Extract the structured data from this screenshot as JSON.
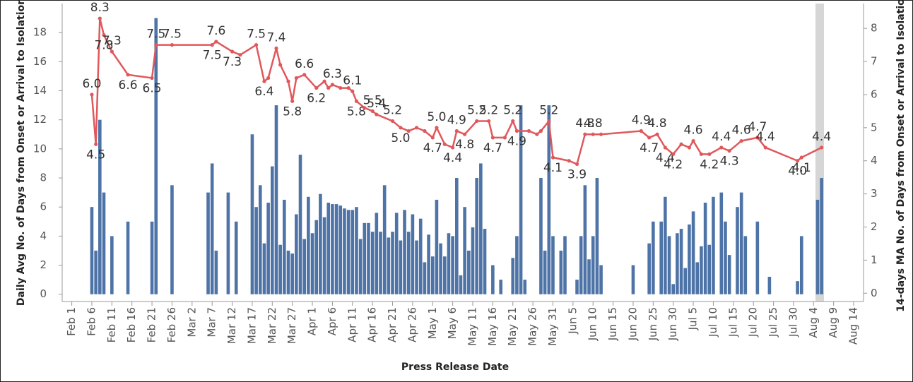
{
  "chart_data": {
    "type": "combo",
    "xlabel": "Press Release Date",
    "ylabel": "Daily Avg No. of Days from Onset or Arrival to Isolation",
    "y2label": "14-days MA No. of Days from Onset or Arrival to Isolation",
    "xticks": [
      "Feb 1",
      "Feb 6",
      "Feb 11",
      "Feb 16",
      "Feb 21",
      "Feb 26",
      "Mar 2",
      "Mar 7",
      "Mar 12",
      "Mar 17",
      "Mar 22",
      "Mar 27",
      "Apr 1",
      "Apr 6",
      "Apr 11",
      "Apr 16",
      "Apr 21",
      "Apr 26",
      "May 1",
      "May 6",
      "May 11",
      "May 16",
      "May 21",
      "May 26",
      "May 31",
      "Jun 5",
      "Jun 10",
      "Jun 15",
      "Jun 20",
      "Jun 25",
      "Jun 30",
      "Jul 5",
      "Jul 10",
      "Jul 15",
      "Jul 20",
      "Jul 25",
      "Jul 30",
      "Aug 4",
      "Aug 9",
      "Aug 14"
    ],
    "ylim": [
      -0.5,
      20
    ],
    "yticks": [
      0,
      2,
      4,
      6,
      8,
      10,
      12,
      14,
      16,
      18
    ],
    "y2lim": [
      -0.25,
      8.75
    ],
    "y2ticks": [
      0,
      1,
      2,
      3,
      4,
      5,
      6,
      7,
      8
    ],
    "series": [
      {
        "type": "bar",
        "color": "#4e73a6",
        "x": [
          "Feb 6",
          "Feb 7",
          "Feb 8",
          "Feb 9",
          "Feb 11",
          "Feb 15",
          "Feb 21",
          "Feb 22",
          "Feb 26",
          "Mar 6",
          "Mar 7",
          "Mar 8",
          "Mar 11",
          "Mar 13",
          "Mar 17",
          "Mar 18",
          "Mar 19",
          "Mar 20",
          "Mar 21",
          "Mar 22",
          "Mar 23",
          "Mar 24",
          "Mar 25",
          "Mar 26",
          "Mar 27",
          "Mar 28",
          "Mar 29",
          "Mar 30",
          "Mar 31",
          "Apr 1",
          "Apr 2",
          "Apr 3",
          "Apr 4",
          "Apr 5",
          "Apr 6",
          "Apr 7",
          "Apr 8",
          "Apr 9",
          "Apr 10",
          "Apr 11",
          "Apr 12",
          "Apr 13",
          "Apr 14",
          "Apr 15",
          "Apr 16",
          "Apr 17",
          "Apr 18",
          "Apr 19",
          "Apr 20",
          "Apr 21",
          "Apr 22",
          "Apr 23",
          "Apr 24",
          "Apr 25",
          "Apr 26",
          "Apr 27",
          "Apr 28",
          "Apr 29",
          "Apr 30",
          "May 1",
          "May 2",
          "May 3",
          "May 4",
          "May 5",
          "May 6",
          "May 7",
          "May 8",
          "May 9",
          "May 10",
          "May 11",
          "May 12",
          "May 13",
          "May 14",
          "May 16",
          "May 18",
          "May 21",
          "May 22",
          "May 23",
          "May 24",
          "May 28",
          "May 29",
          "May 30",
          "May 31",
          "Jun 2",
          "Jun 3",
          "Jun 6",
          "Jun 7",
          "Jun 8",
          "Jun 9",
          "Jun 10",
          "Jun 11",
          "Jun 12",
          "Jun 20",
          "Jun 24",
          "Jun 25",
          "Jun 27",
          "Jun 28",
          "Jun 29",
          "Jun 30",
          "Jul 1",
          "Jul 2",
          "Jul 3",
          "Jul 4",
          "Jul 5",
          "Jul 6",
          "Jul 7",
          "Jul 8",
          "Jul 9",
          "Jul 10",
          "Jul 12",
          "Jul 13",
          "Jul 14",
          "Jul 16",
          "Jul 17",
          "Jul 18",
          "Jul 21",
          "Jul 24",
          "Jul 31",
          "Aug 1",
          "Aug 5",
          "Aug 6"
        ],
        "values": [
          6,
          3,
          12,
          7,
          4,
          5,
          5,
          19,
          7.5,
          7,
          9,
          3,
          7,
          5,
          11,
          6,
          7.5,
          3.5,
          6.3,
          8.8,
          13,
          3.4,
          6.5,
          3,
          2.8,
          5.5,
          9.6,
          3.8,
          6.7,
          4.2,
          5.1,
          6.9,
          5.3,
          6.3,
          6.2,
          6.2,
          6.1,
          5.9,
          5.8,
          5.8,
          6,
          3.8,
          4.9,
          4.9,
          4.3,
          5.6,
          4.3,
          7.5,
          3.9,
          4.3,
          5.6,
          3.7,
          5.8,
          4.3,
          5.5,
          3.7,
          5.2,
          2.2,
          4.1,
          2.6,
          6.5,
          3.5,
          2.6,
          4.2,
          4,
          8,
          1.3,
          6,
          3,
          4.6,
          8,
          9,
          4.5,
          2,
          1,
          2.5,
          4,
          13,
          1,
          8,
          3,
          13,
          4,
          3,
          4,
          1,
          4,
          7.5,
          2.4,
          4,
          8,
          2,
          2,
          3.5,
          5,
          5,
          6.7,
          4,
          0.7,
          4.2,
          4.5,
          1.8,
          4.8,
          5.7,
          2.2,
          3.3,
          6.3,
          3.4,
          6.7,
          7,
          5,
          2.7,
          6,
          7,
          4,
          5,
          1.2,
          0.9,
          4,
          6.5,
          8
        ]
      },
      {
        "type": "line",
        "axis": "y2",
        "color": "#e0585b",
        "x": [
          "Feb 6",
          "Feb 7",
          "Feb 8",
          "Feb 9",
          "Feb 11",
          "Feb 15",
          "Feb 21",
          "Feb 22",
          "Feb 26",
          "Mar 7",
          "Mar 8",
          "Mar 12",
          "Mar 14",
          "Mar 18",
          "Mar 20",
          "Mar 21",
          "Mar 23",
          "Mar 24",
          "Mar 26",
          "Mar 27",
          "Mar 28",
          "Mar 30",
          "Apr 2",
          "Apr 4",
          "Apr 5",
          "Apr 6",
          "Apr 8",
          "Apr 10",
          "Apr 11",
          "Apr 12",
          "Apr 14",
          "Apr 16",
          "Apr 17",
          "Apr 21",
          "Apr 23",
          "Apr 25",
          "Apr 27",
          "Apr 29",
          "May 1",
          "May 2",
          "May 4",
          "May 6",
          "May 7",
          "May 9",
          "May 12",
          "May 15",
          "May 16",
          "May 19",
          "May 21",
          "May 22",
          "May 25",
          "May 27",
          "May 28",
          "May 30",
          "May 31",
          "Jun 4",
          "Jun 6",
          "Jun 8",
          "Jun 10",
          "Jun 12",
          "Jun 22",
          "Jun 24",
          "Jun 26",
          "Jun 28",
          "Jun 30",
          "Jul 2",
          "Jul 4",
          "Jul 5",
          "Jul 7",
          "Jul 9",
          "Jul 12",
          "Jul 14",
          "Jul 17",
          "Jul 21",
          "Jul 23",
          "Jul 31",
          "Aug 1",
          "Aug 6"
        ],
        "values": [
          6.0,
          4.5,
          8.3,
          7.8,
          7.3,
          6.6,
          6.5,
          7.5,
          7.5,
          7.5,
          7.6,
          7.3,
          7.2,
          7.5,
          6.4,
          6.5,
          7.4,
          6.9,
          6.4,
          5.8,
          6.5,
          6.6,
          6.2,
          6.4,
          6.2,
          6.3,
          6.2,
          6.2,
          6.1,
          5.8,
          5.6,
          5.5,
          5.4,
          5.2,
          5.0,
          4.9,
          5.0,
          4.9,
          4.7,
          5.0,
          4.5,
          4.4,
          4.9,
          4.8,
          5.2,
          5.2,
          4.7,
          4.7,
          5.2,
          4.9,
          4.9,
          4.8,
          4.9,
          5.2,
          4.1,
          4.0,
          3.9,
          4.8,
          4.8,
          4.8,
          4.9,
          4.7,
          4.8,
          4.4,
          4.2,
          4.5,
          4.4,
          4.6,
          4.2,
          4.2,
          4.4,
          4.3,
          4.6,
          4.7,
          4.4,
          4.0,
          4.1,
          4.4
        ],
        "value_labels": [
          "6.0",
          "4.5",
          "8.3",
          "7.8",
          "7.3",
          "6.6",
          "6.5",
          "7.5",
          "7.5",
          "7.5",
          "7.6",
          "7.3",
          null,
          "7.5",
          "6.4",
          null,
          "7.4",
          null,
          null,
          "5.8",
          null,
          "6.6",
          "6.2",
          null,
          null,
          "6.3",
          null,
          null,
          "6.1",
          "5.8",
          null,
          "5.5",
          "5.4",
          "5.2",
          "5.0",
          null,
          null,
          null,
          "4.7",
          "5.0",
          null,
          "4.4",
          "4.9",
          "4.8",
          "5.2",
          "5.2",
          "4.7",
          null,
          "5.2",
          "4.9",
          null,
          null,
          null,
          "5.2",
          "4.1",
          null,
          "3.9",
          "4.8",
          "4.8",
          null,
          "4.9",
          "4.7",
          "4.8",
          "4.4",
          "4.2",
          null,
          null,
          "4.6",
          null,
          "4.2",
          "4.4",
          "4.3",
          "4.6",
          "4.7",
          "4.4",
          "4.0",
          "4.1",
          "4.4"
        ]
      }
    ]
  }
}
